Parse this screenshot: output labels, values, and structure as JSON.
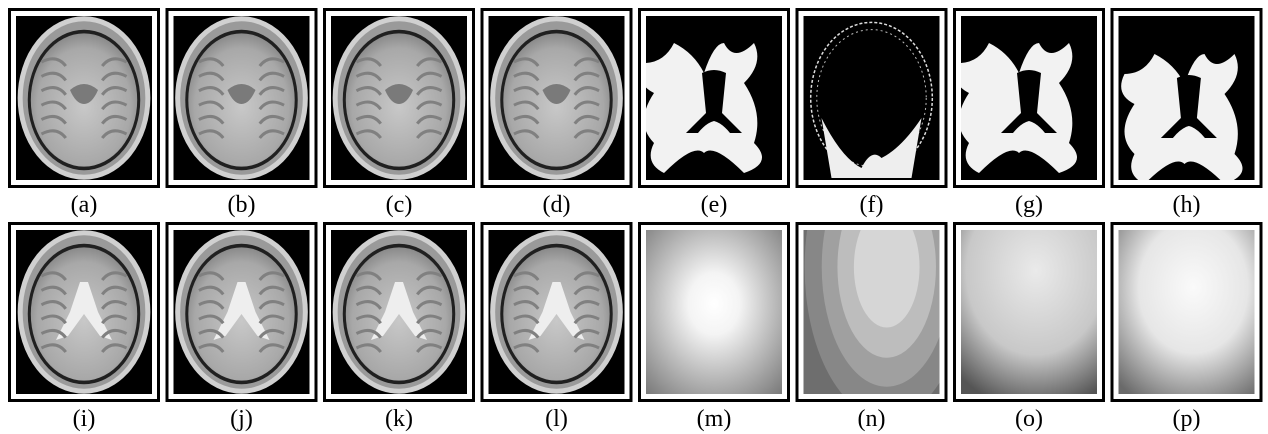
{
  "rows": [
    [
      "(a)",
      "(b)",
      "(c)",
      "(d)",
      "(e)",
      "(f)",
      "(g)",
      "(h)"
    ],
    [
      "(i)",
      "(j)",
      "(k)",
      "(l)",
      "(m)",
      "(n)",
      "(o)",
      "(p)"
    ]
  ]
}
